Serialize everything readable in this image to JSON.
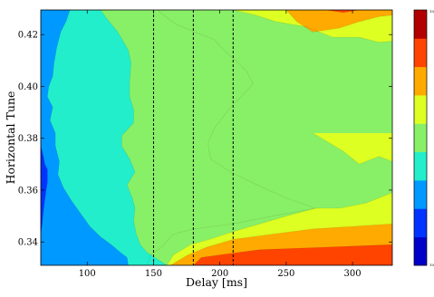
{
  "chart_data": {
    "type": "contour",
    "title": "",
    "xlabel": "Delay [ms]",
    "ylabel": "Horizontal Tune",
    "xlim": [
      65,
      330
    ],
    "ylim": [
      0.331,
      0.4295
    ],
    "xticks": [
      100,
      150,
      200,
      250,
      300
    ],
    "yticks": [
      0.34,
      0.36,
      0.38,
      0.4,
      0.42
    ],
    "xtick_labels": [
      "100",
      "150",
      "200",
      "250",
      "300"
    ],
    "ytick_labels": [
      "0.34",
      "0.36",
      "0.38",
      "0.40",
      "0.42"
    ],
    "grid": false,
    "colormap": "jet",
    "levels": 9,
    "level_colors": [
      "#0000c8",
      "#0033ff",
      "#0099ff",
      "#22eecc",
      "#88f066",
      "#ddff22",
      "#ffaa00",
      "#ff4400",
      "#b20000"
    ],
    "vertical_markers": {
      "x": [
        150,
        180,
        210
      ],
      "style": "dashed",
      "color": "#000000"
    },
    "contour_boundaries": [
      {
        "separates": [
          1,
          2
        ],
        "points": [
          [
            65,
            0.331
          ],
          [
            65,
            0.343
          ],
          [
            66,
            0.347
          ],
          [
            67,
            0.352
          ],
          [
            68,
            0.356
          ],
          [
            69,
            0.36
          ],
          [
            70,
            0.363
          ],
          [
            70,
            0.368
          ],
          [
            68,
            0.37
          ],
          [
            67,
            0.373
          ],
          [
            66,
            0.375
          ],
          [
            65,
            0.377
          ]
        ]
      },
      {
        "separates": [
          2,
          3
        ],
        "points": [
          [
            65,
            0.4295
          ],
          [
            87,
            0.4295
          ],
          [
            84,
            0.425
          ],
          [
            80,
            0.421
          ],
          [
            77,
            0.415
          ],
          [
            75,
            0.409
          ],
          [
            74,
            0.404
          ],
          [
            71,
            0.4
          ],
          [
            70,
            0.396
          ],
          [
            74,
            0.392
          ],
          [
            72,
            0.387
          ],
          [
            76,
            0.382
          ],
          [
            76,
            0.377
          ],
          [
            79,
            0.371
          ],
          [
            78,
            0.366
          ],
          [
            82,
            0.361
          ],
          [
            88,
            0.356
          ],
          [
            95,
            0.351
          ],
          [
            102,
            0.346
          ],
          [
            110,
            0.342
          ],
          [
            118,
            0.339
          ],
          [
            125,
            0.336
          ],
          [
            130,
            0.334
          ],
          [
            131,
            0.331
          ]
        ]
      },
      {
        "separates": [
          3,
          4
        ],
        "points": [
          [
            110,
            0.4295
          ],
          [
            115,
            0.426
          ],
          [
            123,
            0.421
          ],
          [
            131,
            0.414
          ],
          [
            133,
            0.409
          ],
          [
            132,
            0.402
          ],
          [
            132,
            0.396
          ],
          [
            135,
            0.391
          ],
          [
            135,
            0.386
          ],
          [
            126,
            0.381
          ],
          [
            126,
            0.377
          ],
          [
            132,
            0.372
          ],
          [
            136,
            0.367
          ],
          [
            130,
            0.362
          ],
          [
            134,
            0.357
          ],
          [
            136,
            0.353
          ],
          [
            135,
            0.348
          ],
          [
            137,
            0.343
          ],
          [
            140,
            0.339
          ],
          [
            145,
            0.336
          ],
          [
            154,
            0.333
          ],
          [
            160,
            0.331
          ]
        ]
      },
      {
        "separates": [
          4,
          5
        ],
        "points": [
          [
            153,
            0.4295
          ],
          [
            159,
            0.427
          ],
          [
            167,
            0.424
          ],
          [
            181,
            0.421
          ],
          [
            196,
            0.418
          ],
          [
            203,
            0.414
          ],
          [
            212,
            0.41
          ],
          [
            220,
            0.406
          ],
          [
            225,
            0.401
          ],
          [
            216,
            0.396
          ],
          [
            208,
            0.392
          ],
          [
            202,
            0.388
          ],
          [
            196,
            0.384
          ],
          [
            191,
            0.378
          ],
          [
            193,
            0.372
          ],
          [
            208,
            0.367
          ],
          [
            228,
            0.362
          ],
          [
            250,
            0.357
          ],
          [
            272,
            0.353
          ],
          [
            240,
            0.35
          ],
          [
            210,
            0.347
          ],
          [
            180,
            0.345
          ],
          [
            165,
            0.343
          ],
          [
            156,
            0.338
          ],
          [
            148,
            0.335
          ],
          [
            145,
            0.331
          ]
        ]
      },
      {
        "separates": [
          5,
          6
        ],
        "points": [
          [
            330,
            0.4175
          ],
          [
            320,
            0.417
          ],
          [
            305,
            0.419
          ],
          [
            285,
            0.419
          ],
          [
            265,
            0.423
          ],
          [
            242,
            0.425
          ],
          [
            227,
            0.4275
          ],
          [
            210,
            0.4295
          ]
        ]
      },
      {
        "separates": [
          5,
          6
        ],
        "points": [
          [
            330,
            0.371
          ],
          [
            320,
            0.373
          ],
          [
            305,
            0.37
          ],
          [
            293,
            0.375
          ],
          [
            280,
            0.379
          ],
          [
            270,
            0.382
          ]
        ]
      },
      {
        "separates": [
          5,
          6
        ],
        "points": [
          [
            330,
            0.359
          ],
          [
            310,
            0.355
          ],
          [
            290,
            0.353
          ],
          [
            272,
            0.353
          ],
          [
            250,
            0.35
          ],
          [
            230,
            0.347
          ],
          [
            210,
            0.344
          ],
          [
            192,
            0.341
          ],
          [
            178,
            0.339
          ],
          [
            165,
            0.335
          ],
          [
            160,
            0.331
          ]
        ]
      },
      {
        "separates": [
          6,
          7
        ],
        "points": [
          [
            330,
            0.4275
          ],
          [
            320,
            0.427
          ],
          [
            305,
            0.425
          ],
          [
            290,
            0.4225
          ],
          [
            270,
            0.421
          ],
          [
            258,
            0.425
          ],
          [
            250,
            0.4295
          ]
        ]
      },
      {
        "separates": [
          6,
          7
        ],
        "points": [
          [
            330,
            0.347
          ],
          [
            300,
            0.346
          ],
          [
            270,
            0.345
          ],
          [
            240,
            0.343
          ],
          [
            210,
            0.341
          ],
          [
            190,
            0.338
          ],
          [
            176,
            0.335
          ],
          [
            166,
            0.332
          ],
          [
            163,
            0.331
          ]
        ]
      },
      {
        "separates": [
          7,
          8
        ],
        "points": [
          [
            330,
            0.4295
          ],
          [
            305,
            0.4295
          ],
          [
            293,
            0.4285
          ],
          [
            280,
            0.4295
          ]
        ]
      },
      {
        "separates": [
          7,
          8
        ],
        "points": [
          [
            330,
            0.339
          ],
          [
            280,
            0.338
          ],
          [
            230,
            0.337
          ],
          [
            200,
            0.335
          ],
          [
            186,
            0.334
          ],
          [
            180,
            0.331
          ]
        ]
      }
    ],
    "colorbar": {
      "position": "right",
      "tick_labels": [
        "10",
        "10"
      ]
    }
  }
}
